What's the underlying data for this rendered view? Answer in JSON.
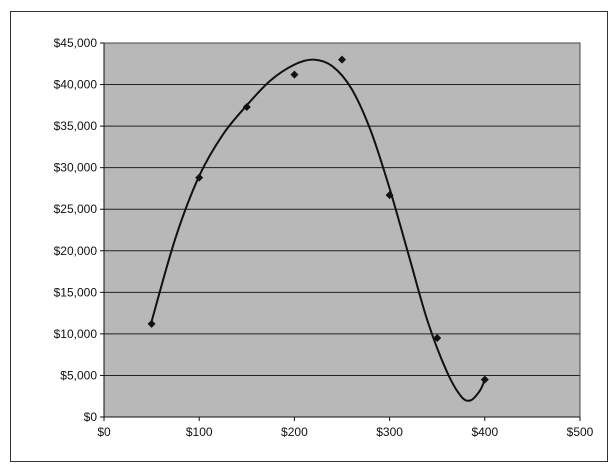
{
  "chart_data": {
    "type": "scatter",
    "title": "",
    "xlabel": "",
    "ylabel": "",
    "xlim": [
      0,
      500
    ],
    "ylim": [
      0,
      45000
    ],
    "x_ticks": [
      0,
      100,
      200,
      300,
      400,
      500
    ],
    "y_ticks": [
      0,
      5000,
      10000,
      15000,
      20000,
      25000,
      30000,
      35000,
      40000,
      45000
    ],
    "x_tick_labels": [
      "$0",
      "$100",
      "$200",
      "$300",
      "$400",
      "$500"
    ],
    "y_tick_labels": [
      "$0",
      "$5,000",
      "$10,000",
      "$15,000",
      "$20,000",
      "$25,000",
      "$30,000",
      "$35,000",
      "$40,000",
      "$45,000"
    ],
    "grid": "horizontal",
    "legend": "none",
    "series": [
      {
        "points": [
          {
            "x": 50,
            "y": 11200
          },
          {
            "x": 100,
            "y": 28800
          },
          {
            "x": 150,
            "y": 37300
          },
          {
            "x": 200,
            "y": 41200
          },
          {
            "x": 250,
            "y": 43000
          },
          {
            "x": 300,
            "y": 26700
          },
          {
            "x": 350,
            "y": 9500
          },
          {
            "x": 400,
            "y": 4500
          }
        ]
      }
    ],
    "trendline": {
      "type": "smooth-curve",
      "points": [
        {
          "x": 50,
          "y": 11500
        },
        {
          "x": 75,
          "y": 21500
        },
        {
          "x": 100,
          "y": 29000
        },
        {
          "x": 125,
          "y": 34000
        },
        {
          "x": 150,
          "y": 37500
        },
        {
          "x": 175,
          "y": 40500
        },
        {
          "x": 200,
          "y": 42400
        },
        {
          "x": 220,
          "y": 43000
        },
        {
          "x": 240,
          "y": 42200
        },
        {
          "x": 260,
          "y": 39500
        },
        {
          "x": 280,
          "y": 34500
        },
        {
          "x": 300,
          "y": 27500
        },
        {
          "x": 320,
          "y": 19500
        },
        {
          "x": 340,
          "y": 11500
        },
        {
          "x": 360,
          "y": 5500
        },
        {
          "x": 375,
          "y": 2500
        },
        {
          "x": 385,
          "y": 2000
        },
        {
          "x": 395,
          "y": 3200
        },
        {
          "x": 400,
          "y": 4500
        }
      ]
    },
    "colors": {
      "plot_background": "#b8b8b8",
      "gridline": "#222222",
      "marker": "#111111",
      "curve": "#111111"
    }
  }
}
